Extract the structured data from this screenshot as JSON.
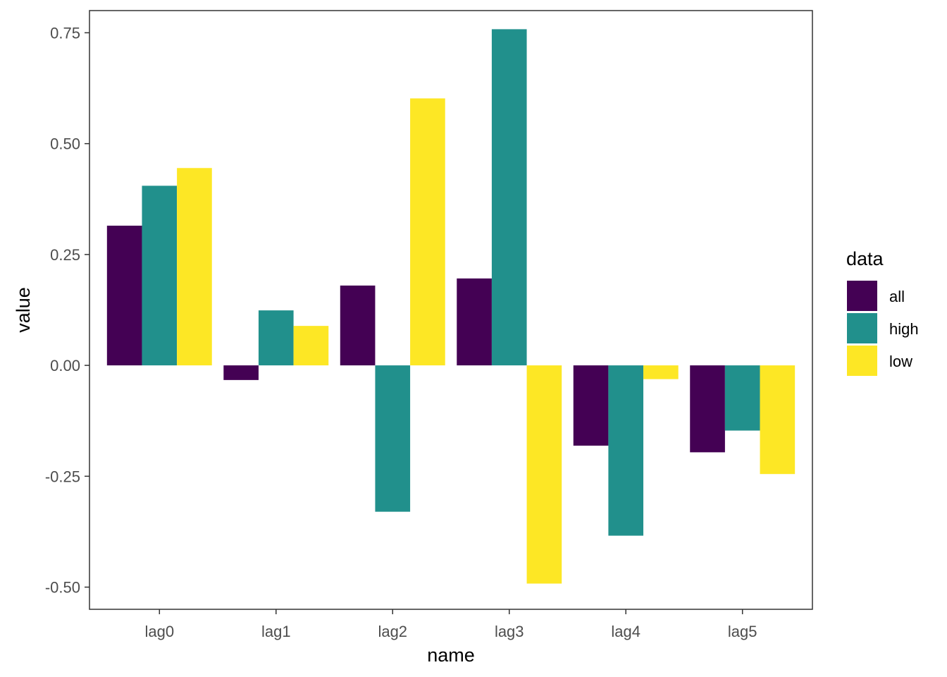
{
  "chart_data": {
    "type": "bar",
    "xlabel": "name",
    "ylabel": "value",
    "categories": [
      "lag0",
      "lag1",
      "lag2",
      "lag3",
      "lag4",
      "lag5"
    ],
    "series": [
      {
        "name": "all",
        "color": "#440154",
        "values": [
          0.315,
          -0.033,
          0.18,
          0.196,
          -0.181,
          -0.196
        ]
      },
      {
        "name": "high",
        "color": "#21908C",
        "values": [
          0.405,
          0.124,
          -0.33,
          0.758,
          -0.384,
          -0.147
        ]
      },
      {
        "name": "low",
        "color": "#FDE725",
        "values": [
          0.445,
          0.089,
          0.602,
          -0.492,
          -0.031,
          -0.245
        ]
      }
    ],
    "ylim": [
      -0.55,
      0.8
    ],
    "yticks": [
      -0.5,
      -0.25,
      0.0,
      0.25,
      0.5,
      0.75
    ],
    "ytick_labels": [
      "-0.50",
      "-0.25",
      "0.00",
      "0.25",
      "0.50",
      "0.75"
    ],
    "legend": {
      "title": "data",
      "position": "right"
    },
    "grid": false
  }
}
